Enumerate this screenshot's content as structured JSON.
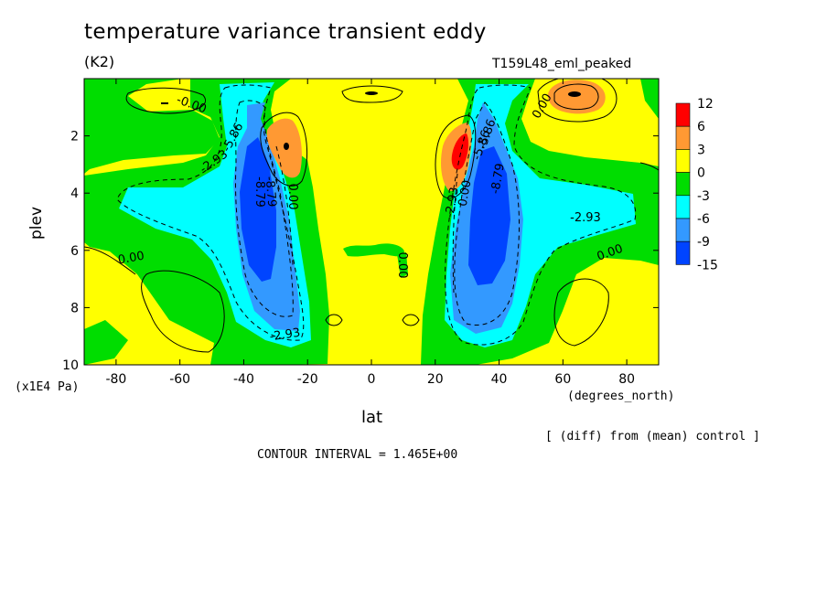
{
  "title": "temperature variance transient eddy",
  "units": "(K2)",
  "run_name": "T159L48_eml_peaked",
  "ylabel": "plev",
  "y_unit": "(x1E4 Pa)",
  "xlabel": "lat",
  "x_unit": "(degrees_north)",
  "diff_note": "[ (diff) from (mean) control ]",
  "contour_interval": "CONTOUR INTERVAL = 1.465E+00",
  "chart_data": {
    "type": "heatmap",
    "xlim": [
      -90,
      90
    ],
    "ylim": [
      0,
      10
    ],
    "y_reversed": true,
    "x_ticks": [
      "-80",
      "-60",
      "-40",
      "-20",
      "0",
      "20",
      "40",
      "60",
      "80"
    ],
    "x_tick_values": [
      -80,
      -60,
      -40,
      -20,
      0,
      20,
      40,
      60,
      80
    ],
    "y_ticks": [
      "2",
      "4",
      "6",
      "8",
      "10"
    ],
    "y_tick_values": [
      2,
      4,
      6,
      8,
      10
    ],
    "colorbar": {
      "labels": [
        "12",
        "6",
        "3",
        "0",
        "-3",
        "-6",
        "-9",
        "-15"
      ],
      "colors": [
        "#ff0000",
        "#ff9933",
        "#ffff00",
        "#00dd00",
        "#00ffff",
        "#3399ff",
        "#0044ff"
      ]
    },
    "contour_labels": [
      "-0.00",
      "-5.86",
      "-2.93",
      "-8.79",
      "0.00",
      "-5.86",
      "-8.79",
      "-2.93",
      "0.00",
      "-2.93",
      "0.00",
      "0.00",
      "-2.93",
      "0.00",
      "0.00",
      "-5.86",
      "-8.79"
    ],
    "features": [
      {
        "name": "SH negative core",
        "lat": -35,
        "plev": 5.0,
        "level": "-15"
      },
      {
        "name": "NH negative core",
        "lat": 35,
        "plev": 5.0,
        "level": "-15"
      },
      {
        "name": "SH positive maximum",
        "lat": -27,
        "plev": 2.5,
        "level": "6"
      },
      {
        "name": "NH positive maximum",
        "lat": 27,
        "plev": 2.7,
        "level": "12"
      },
      {
        "name": "NH polar positive maximum",
        "lat": 63,
        "plev": 0.7,
        "level": "6"
      }
    ]
  }
}
